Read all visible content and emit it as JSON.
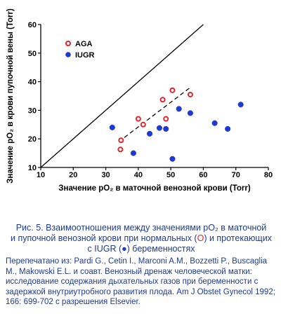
{
  "chart_data": {
    "type": "scatter",
    "xlabel": "Значение pO₂ в маточной венозной крови  (Torr)",
    "ylabel": "Значение pO₂ в крови  пупочной вены (Torr)",
    "xlim": [
      10,
      80
    ],
    "ylim": [
      10,
      60
    ],
    "xticks": [
      10,
      20,
      30,
      40,
      50,
      60,
      70,
      80
    ],
    "yticks": [
      10,
      20,
      30,
      40,
      50,
      60
    ],
    "grid": false,
    "legend_position": "top-left",
    "identity_line": {
      "x": [
        10,
        60
      ],
      "y": [
        10,
        60
      ]
    },
    "regression_line": {
      "x": [
        34,
        56
      ],
      "y": [
        19,
        38
      ]
    },
    "series": [
      {
        "name": "AGA",
        "marker": "open-circle",
        "color": "#e0262d",
        "x": [
          34.5,
          34.7,
          40,
          41.5,
          47.5,
          48.5,
          50.5,
          56
        ],
        "y": [
          16.3,
          19.5,
          27,
          25,
          33.7,
          27,
          37,
          35.5
        ]
      },
      {
        "name": "IUGR",
        "marker": "filled-circle",
        "color": "#1f3ad0",
        "x": [
          32,
          38.5,
          43.5,
          46.5,
          48.5,
          50.5,
          52.5,
          56,
          63.5,
          67.5,
          71.5
        ],
        "y": [
          24,
          15,
          21.8,
          23.8,
          23.5,
          13,
          30.5,
          29,
          25.5,
          23.5,
          32
        ]
      }
    ]
  },
  "caption": {
    "title_line1": "Рис. 5. Взаимоотношения между значениями pO₂ в маточной",
    "title_line2a": "и пупочной венозной крови при нормальных (",
    "title_line2_glyph": "O",
    "title_line2b": ") и протекающих",
    "title_line3a": "с IUGR (",
    "title_line3_glyph": "●",
    "title_line3b": ") беременностях",
    "body": "Перепечатано из: Pardi G., Cetin I., Marconi A.M., Bozzetti P., Buscaglia M., Makowski E.L. и соавт. Венозный дренаж человеческой матки: исследование содержания дыхательных газов при беременности с задержкой внутриутробного развития плода. Am J Obstet Gynecol 1992; 166: 699-702 с разрешения Elsevier."
  }
}
